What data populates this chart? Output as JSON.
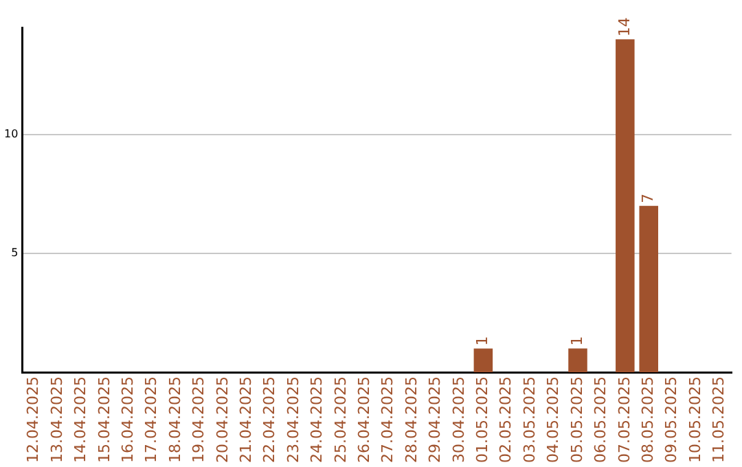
{
  "chart_data": {
    "type": "bar",
    "categories": [
      "12.04.2025",
      "13.04.2025",
      "14.04.2025",
      "15.04.2025",
      "16.04.2025",
      "17.04.2025",
      "18.04.2025",
      "19.04.2025",
      "20.04.2025",
      "21.04.2025",
      "22.04.2025",
      "23.04.2025",
      "24.04.2025",
      "25.04.2025",
      "26.04.2025",
      "27.04.2025",
      "28.04.2025",
      "29.04.2025",
      "30.04.2025",
      "01.05.2025",
      "02.05.2025",
      "03.05.2025",
      "04.05.2025",
      "05.05.2025",
      "06.05.2025",
      "07.05.2025",
      "08.05.2025",
      "09.05.2025",
      "10.05.2025",
      "11.05.2025"
    ],
    "values": [
      0,
      0,
      0,
      0,
      0,
      0,
      0,
      0,
      0,
      0,
      0,
      0,
      0,
      0,
      0,
      0,
      0,
      0,
      0,
      1,
      0,
      0,
      0,
      1,
      0,
      14,
      7,
      0,
      0,
      0
    ],
    "value_labels": [
      null,
      null,
      null,
      null,
      null,
      null,
      null,
      null,
      null,
      null,
      null,
      null,
      null,
      null,
      null,
      null,
      null,
      null,
      null,
      "1",
      null,
      null,
      null,
      "1",
      null,
      "14",
      "7",
      null,
      null,
      null
    ],
    "color": "#a0522d",
    "ylim": [
      0,
      14.5
    ],
    "yticks": [
      5,
      10
    ],
    "grid": "y",
    "legend": false
  }
}
